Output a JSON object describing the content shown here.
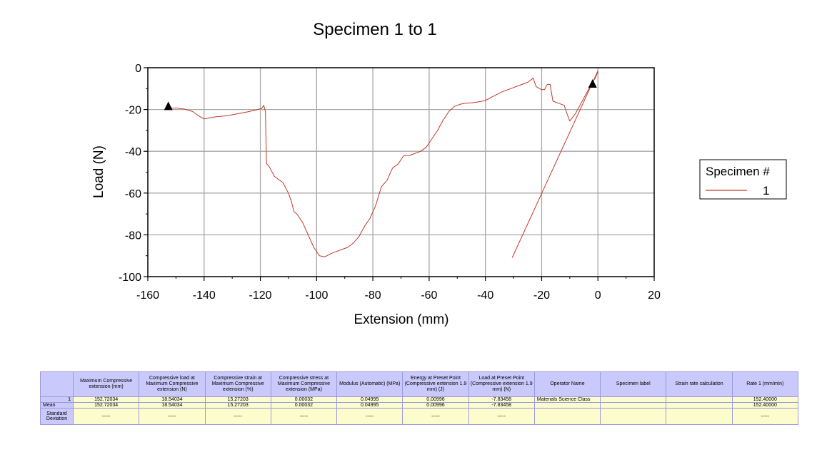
{
  "chart_data": {
    "type": "line",
    "title": "Specimen 1 to 1",
    "xlabel": "Extension (mm)",
    "ylabel": "Load (N)",
    "xlim": [
      -160,
      20
    ],
    "ylim": [
      -100,
      0
    ],
    "xticks": [
      -160,
      -140,
      -120,
      -100,
      -80,
      -60,
      -40,
      -20,
      0,
      20
    ],
    "yticks": [
      0,
      -20,
      -40,
      -60,
      -80,
      -100
    ],
    "grid": true,
    "legend": {
      "title": "Specimen #",
      "placement": "right"
    },
    "series": [
      {
        "name": "1",
        "color": "#c0392b",
        "x": [
          -152.7,
          -150,
          -147,
          -144,
          -142,
          -140,
          -136,
          -132,
          -128,
          -124,
          -121,
          -119.5,
          -118.8,
          -118.2,
          -117.8,
          -117,
          -115,
          -112,
          -110,
          -109,
          -108,
          -107,
          -105,
          -103,
          -101,
          -99,
          -97,
          -95,
          -93,
          -91,
          -89,
          -87,
          -85,
          -83,
          -81,
          -79,
          -77,
          -75,
          -73,
          -71,
          -69,
          -67,
          -65,
          -63,
          -61,
          -59,
          -57,
          -55,
          -53,
          -51,
          -49,
          -47,
          -45,
          -43,
          -40,
          -37,
          -34,
          -31,
          -28,
          -25,
          -23,
          -22,
          -20,
          -19,
          -18,
          -17,
          -16,
          -14,
          -12,
          -11,
          -10,
          -8,
          -6,
          -4,
          -2,
          -1,
          0
        ],
        "y": [
          -19.5,
          -19.3,
          -19.8,
          -21,
          -23,
          -24.5,
          -23.5,
          -23,
          -22,
          -21,
          -20,
          -19.5,
          -18,
          -21,
          -46,
          -47,
          -52,
          -55,
          -60,
          -64,
          -69,
          -70,
          -74,
          -80,
          -86,
          -90,
          -90.5,
          -89,
          -88,
          -87,
          -86,
          -84,
          -81,
          -76,
          -72,
          -66,
          -57,
          -54,
          -48,
          -46,
          -42,
          -42,
          -41,
          -40,
          -38,
          -34,
          -30,
          -25,
          -21,
          -18.5,
          -17.5,
          -17,
          -16.8,
          -16.5,
          -15.7,
          -13.5,
          -11.5,
          -10,
          -8.5,
          -7,
          -5,
          -9,
          -10.5,
          -10.5,
          -8,
          -8,
          -16,
          -17,
          -18,
          -22,
          -25.5,
          -22,
          -17,
          -12,
          -7,
          -5,
          -2
        ]
      }
    ],
    "preset_line": {
      "x": [
        -30.5,
        0
      ],
      "y": [
        -91,
        -1.5
      ]
    },
    "markers": [
      {
        "x": -152.72,
        "y": -18.54
      },
      {
        "x": -1.9,
        "y": -7.83
      }
    ]
  },
  "table": {
    "headers": [
      "",
      "Maximum Compressive extension (mm)",
      "Compressive load at Maximum Compressive extension (N)",
      "Compressive strain at Maximum Compressive extension (%)",
      "Compressive stress at Maximum Compressive extension (MPa)",
      "Modulus (Automatic) (MPa)",
      "Energy at Preset Point (Compressive extension 1.9 mm) (J)",
      "Load at Preset Point (Compressive extension 1.9 mm) (N)",
      "Operator Name",
      "Specimen label",
      "Strain rate calculation",
      "Rate 1 (mm/min)"
    ],
    "rows": [
      {
        "label": "1",
        "cells": [
          "152.72034",
          "18.54034",
          "15.27203",
          "0.00032",
          "0.04995",
          "0.00996",
          "-7.83458",
          "Materials Science Class",
          "",
          "",
          "152.40000"
        ]
      },
      {
        "label": "Mean",
        "cells": [
          "152.72034",
          "18.54034",
          "15.27203",
          "0.00032",
          "0.04995",
          "0.00996",
          "-7.83458",
          "",
          "",
          "",
          "152.40000"
        ]
      },
      {
        "label": "Standard Deviation",
        "cells": [
          "-----",
          "-----",
          "-----",
          "-----",
          "-----",
          "-----",
          "-----",
          "",
          "",
          "",
          "-----"
        ]
      }
    ]
  }
}
